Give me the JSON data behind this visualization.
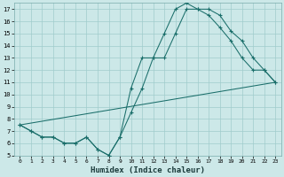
{
  "xlabel": "Humidex (Indice chaleur)",
  "xlim": [
    -0.5,
    23.5
  ],
  "ylim": [
    5,
    17.5
  ],
  "yticks": [
    5,
    6,
    7,
    8,
    9,
    10,
    11,
    12,
    13,
    14,
    15,
    16,
    17
  ],
  "xticks": [
    0,
    1,
    2,
    3,
    4,
    5,
    6,
    7,
    8,
    9,
    10,
    11,
    12,
    13,
    14,
    15,
    16,
    17,
    18,
    19,
    20,
    21,
    22,
    23
  ],
  "bg_color": "#cce8e8",
  "grid_color": "#a0cccc",
  "line_color": "#1a6e6a",
  "line1_x": [
    0,
    1,
    2,
    3,
    4,
    5,
    6,
    7,
    8,
    9,
    10,
    11,
    12,
    13,
    14,
    15,
    16,
    17,
    18,
    19,
    20,
    21,
    22,
    23
  ],
  "line1_y": [
    7.5,
    7.0,
    6.5,
    6.5,
    6.0,
    6.0,
    6.5,
    5.5,
    5.0,
    6.5,
    8.5,
    10.5,
    13.0,
    15.0,
    17.0,
    17.5,
    17.0,
    17.0,
    16.5,
    15.2,
    14.4,
    13.0,
    12.0,
    11.0
  ],
  "line2_x": [
    0,
    1,
    2,
    3,
    4,
    5,
    6,
    7,
    8,
    9,
    10,
    11,
    12,
    13,
    14,
    15,
    16,
    17,
    18,
    19,
    20,
    21,
    22,
    23
  ],
  "line2_y": [
    7.5,
    7.0,
    6.5,
    6.5,
    6.0,
    6.0,
    6.5,
    5.5,
    5.0,
    6.5,
    10.5,
    13.0,
    13.0,
    13.0,
    15.0,
    17.0,
    17.0,
    16.5,
    15.5,
    14.4,
    13.0,
    12.0,
    12.0,
    11.0
  ],
  "line3_x": [
    0,
    23
  ],
  "line3_y": [
    7.5,
    11.0
  ]
}
